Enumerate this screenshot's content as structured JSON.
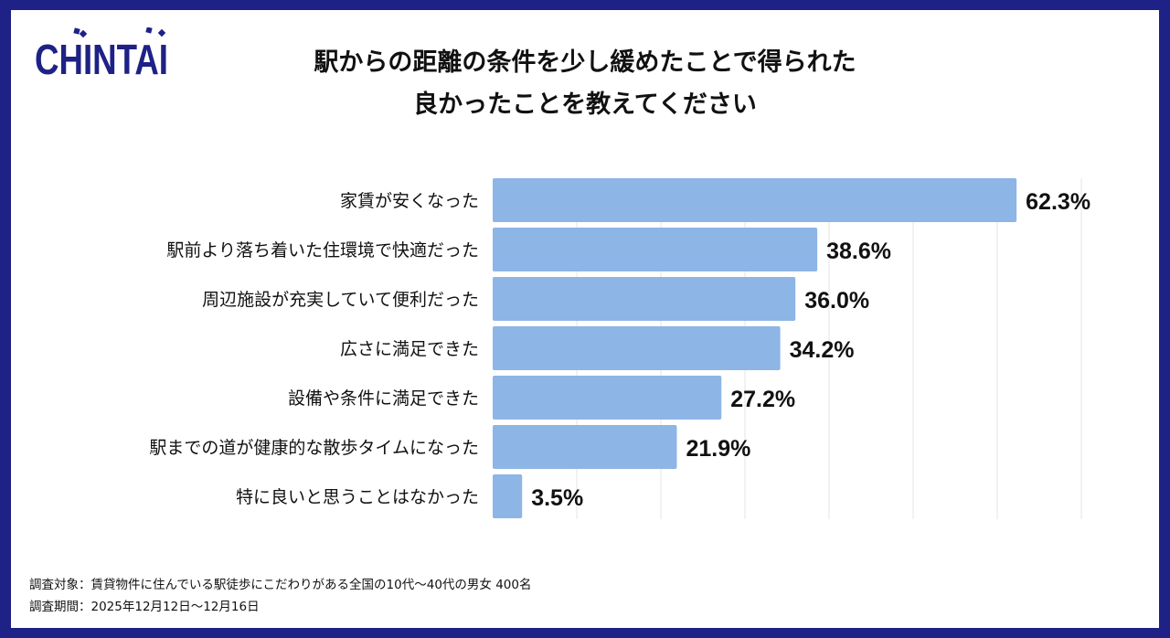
{
  "logo_text": "CHINTAI",
  "title_lines": [
    "駅からの距離の条件を少し緩めたことで得られた",
    "良かったことを教えてください"
  ],
  "footer": {
    "target": "調査対象：賃貸物件に住んでいる駅徒歩にこだわりがある全国の10代〜40代の男女 400名",
    "period": "調査期間：2025年12月12日〜12月16日"
  },
  "colors": {
    "bar": "#8db5e6",
    "frame": "#1e2185",
    "grid": "#e4e4e4"
  },
  "chart_data": {
    "type": "bar",
    "orientation": "horizontal",
    "categories": [
      "家賃が安くなった",
      "駅前より落ち着いた住環境で快適だった",
      "周辺施設が充実していて便利だった",
      "広さに満足できた",
      "設備や条件に満足できた",
      "駅までの道が健康的な散歩タイムになった",
      "特に良いと思うことはなかった"
    ],
    "values": [
      62.3,
      38.6,
      36.0,
      34.2,
      27.2,
      21.9,
      3.5
    ],
    "labels": [
      "62.3%",
      "38.6%",
      "36.0%",
      "34.2%",
      "27.2%",
      "21.9%",
      "3.5%"
    ],
    "xlim": [
      0,
      70
    ],
    "grid": true,
    "grid_step": 10
  }
}
